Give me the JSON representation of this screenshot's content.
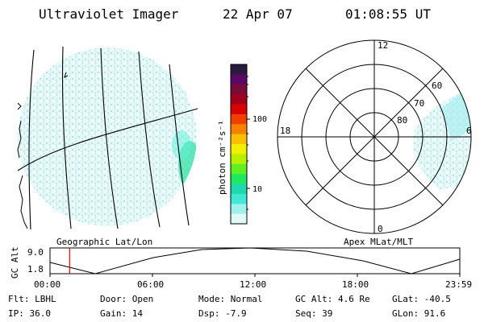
{
  "header": {
    "instrument": "Ultraviolet Imager",
    "date": "22 Apr 07",
    "time": "01:08:55 UT"
  },
  "colorbar": {
    "label": "photon cm⁻²s⁻¹",
    "ticks": [
      "100",
      "10"
    ],
    "colors": [
      "#2a1a40",
      "#5a0a66",
      "#7a0a3a",
      "#a0001a",
      "#d80000",
      "#f04000",
      "#f88000",
      "#f8c000",
      "#f0f000",
      "#b8f000",
      "#60f020",
      "#20e860",
      "#20d8b0",
      "#40e8d8",
      "#a0f0f0",
      "#e0f8f8"
    ]
  },
  "left_panel": {
    "caption": "Geographic Lat/Lon",
    "fill_color": "#c8f0f0"
  },
  "right_panel": {
    "caption": "Apex MLat/MLT",
    "mlt_labels": {
      "top": "12",
      "left": "18",
      "right": "6",
      "bottom": "0"
    },
    "lat_labels": [
      "60",
      "70",
      "80"
    ]
  },
  "altitude_plot": {
    "ylabel": "GC Alt",
    "y_ticks": [
      "9.0",
      "1.8"
    ],
    "x_ticks": [
      "00:00",
      "06:00",
      "12:00",
      "18:00",
      "23:59"
    ],
    "marker_time": "01:08:55",
    "marker_color": "#ff0000"
  },
  "status": {
    "row1": [
      {
        "key": "Flt:",
        "value": "LBHL"
      },
      {
        "key": "Door:",
        "value": "Open"
      },
      {
        "key": "Mode:",
        "value": "Normal"
      },
      {
        "key": "GC Alt:",
        "value": "4.6 Re"
      },
      {
        "key": "GLat:",
        "value": "-40.5"
      }
    ],
    "row2": [
      {
        "key": "IP:",
        "value": "36.0"
      },
      {
        "key": "Gain:",
        "value": "14"
      },
      {
        "key": "Dsp:",
        "value": "-7.9"
      },
      {
        "key": "Seq:",
        "value": "39"
      },
      {
        "key": "GLon:",
        "value": "91.6"
      }
    ]
  }
}
